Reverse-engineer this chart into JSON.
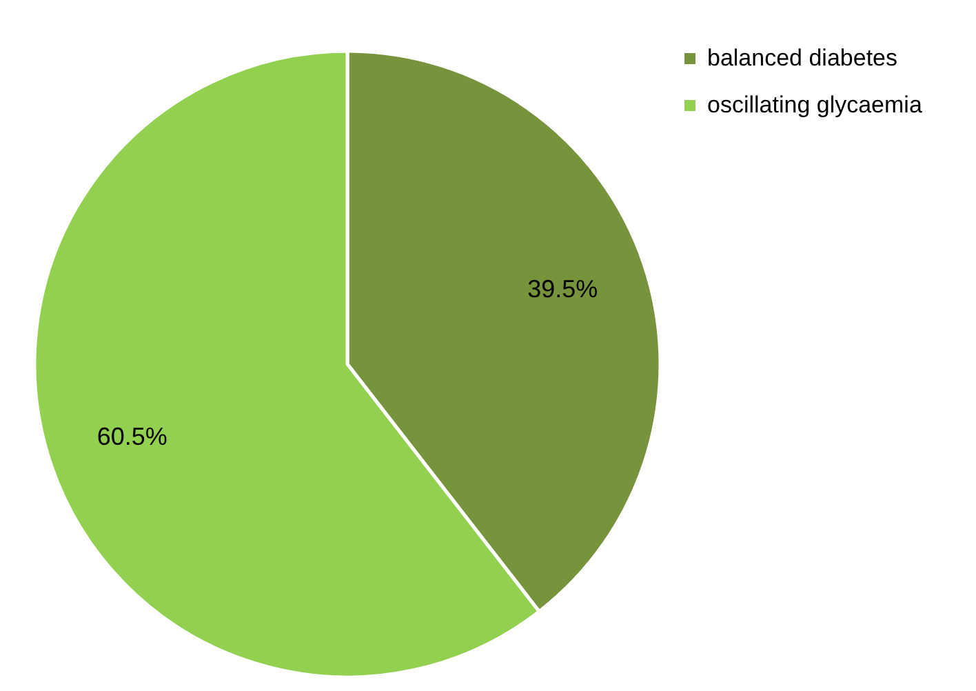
{
  "chart_data": {
    "type": "pie",
    "categories": [
      "balanced diabetes",
      "oscillating glycaemia"
    ],
    "values": [
      39.5,
      60.5
    ],
    "colors": [
      "#77933c",
      "#92d050"
    ],
    "value_labels": [
      "39.5%",
      "60.5%"
    ],
    "legend": "right"
  }
}
